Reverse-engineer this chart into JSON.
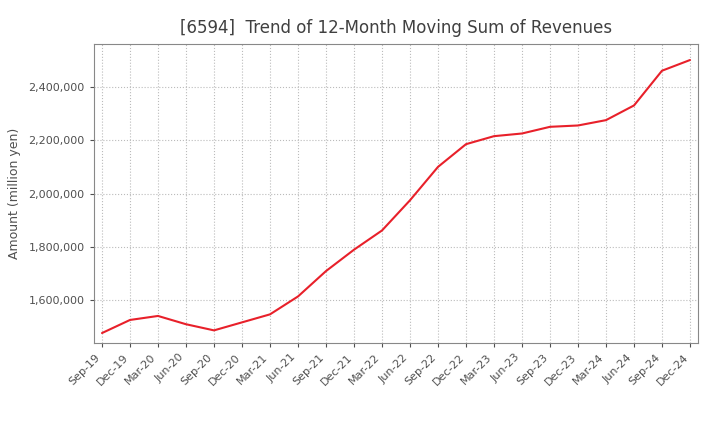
{
  "title": "[6594]  Trend of 12-Month Moving Sum of Revenues",
  "ylabel": "Amount (million yen)",
  "line_color": "#e8202a",
  "background_color": "#ffffff",
  "grid_color": "#bbbbbb",
  "title_color": "#404040",
  "axis_color": "#505050",
  "x_labels": [
    "Sep-19",
    "Dec-19",
    "Mar-20",
    "Jun-20",
    "Sep-20",
    "Dec-20",
    "Mar-21",
    "Jun-21",
    "Sep-21",
    "Dec-21",
    "Mar-22",
    "Jun-22",
    "Sep-22",
    "Dec-22",
    "Mar-23",
    "Jun-23",
    "Sep-23",
    "Dec-23",
    "Mar-24",
    "Jun-24",
    "Sep-24",
    "Dec-24"
  ],
  "y_values": [
    1478000,
    1527000,
    1542000,
    1511000,
    1488000,
    1518000,
    1548000,
    1615000,
    1710000,
    1790000,
    1862000,
    1975000,
    2100000,
    2185000,
    2215000,
    2225000,
    2250000,
    2255000,
    2275000,
    2330000,
    2460000,
    2500000
  ],
  "ylim": [
    1440000,
    2560000
  ],
  "yticks": [
    1600000,
    1800000,
    2000000,
    2200000,
    2400000
  ],
  "title_fontsize": 12,
  "label_fontsize": 9,
  "tick_fontsize": 8
}
